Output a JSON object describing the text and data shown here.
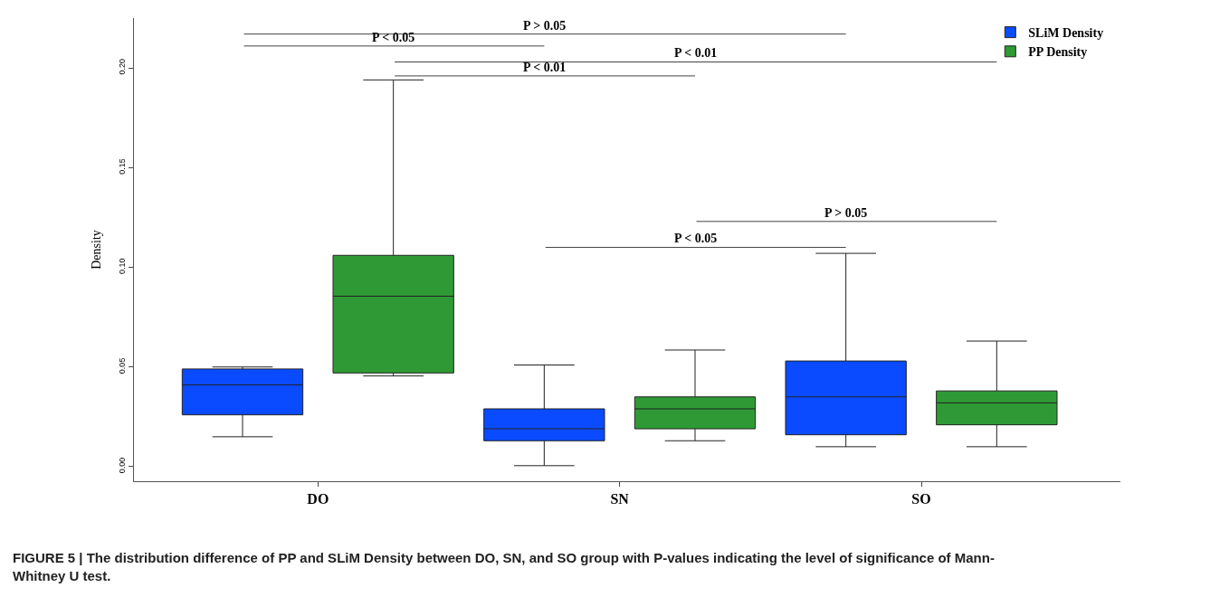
{
  "chart_data": {
    "type": "box",
    "ylabel": "Density",
    "categories": [
      "DO",
      "SN",
      "SO"
    ],
    "series": [
      {
        "name": "SLiM Density",
        "color": "#0a4bff",
        "boxes": [
          {
            "low": 0.015,
            "q1": 0.026,
            "median": 0.041,
            "q3": 0.049,
            "high": 0.05
          },
          {
            "low": 0.0005,
            "q1": 0.013,
            "median": 0.019,
            "q3": 0.029,
            "high": 0.051
          },
          {
            "low": 0.01,
            "q1": 0.016,
            "median": 0.035,
            "q3": 0.053,
            "high": 0.107
          }
        ]
      },
      {
        "name": "PP Density",
        "color": "#2f9a35",
        "boxes": [
          {
            "low": 0.0455,
            "q1": 0.047,
            "median": 0.0855,
            "q3": 0.106,
            "high": 0.194
          },
          {
            "low": 0.013,
            "q1": 0.019,
            "median": 0.029,
            "q3": 0.035,
            "high": 0.0585
          },
          {
            "low": 0.01,
            "q1": 0.021,
            "median": 0.032,
            "q3": 0.038,
            "high": 0.063
          }
        ]
      }
    ],
    "ylim": [
      -0.0073,
      0.225
    ],
    "yticks": [
      {
        "value": 0,
        "label": "0.00"
      },
      0.05,
      {
        "value": 0.1,
        "label": "0.10"
      },
      0.15,
      {
        "value": 0.2,
        "label": "0.20"
      }
    ],
    "legend": "top right",
    "annotations": [
      "P > 0.05",
      "P < 0.05",
      "P < 0.01",
      "P < 0.01",
      "P > 0.05",
      "P < 0.05",
      "FIGURE 5 | The distribution difference of PP and SLiM Density between DO, SN, and SO group with P-values indicating the level of significance of Mann-Whitney U test."
    ]
  }
}
